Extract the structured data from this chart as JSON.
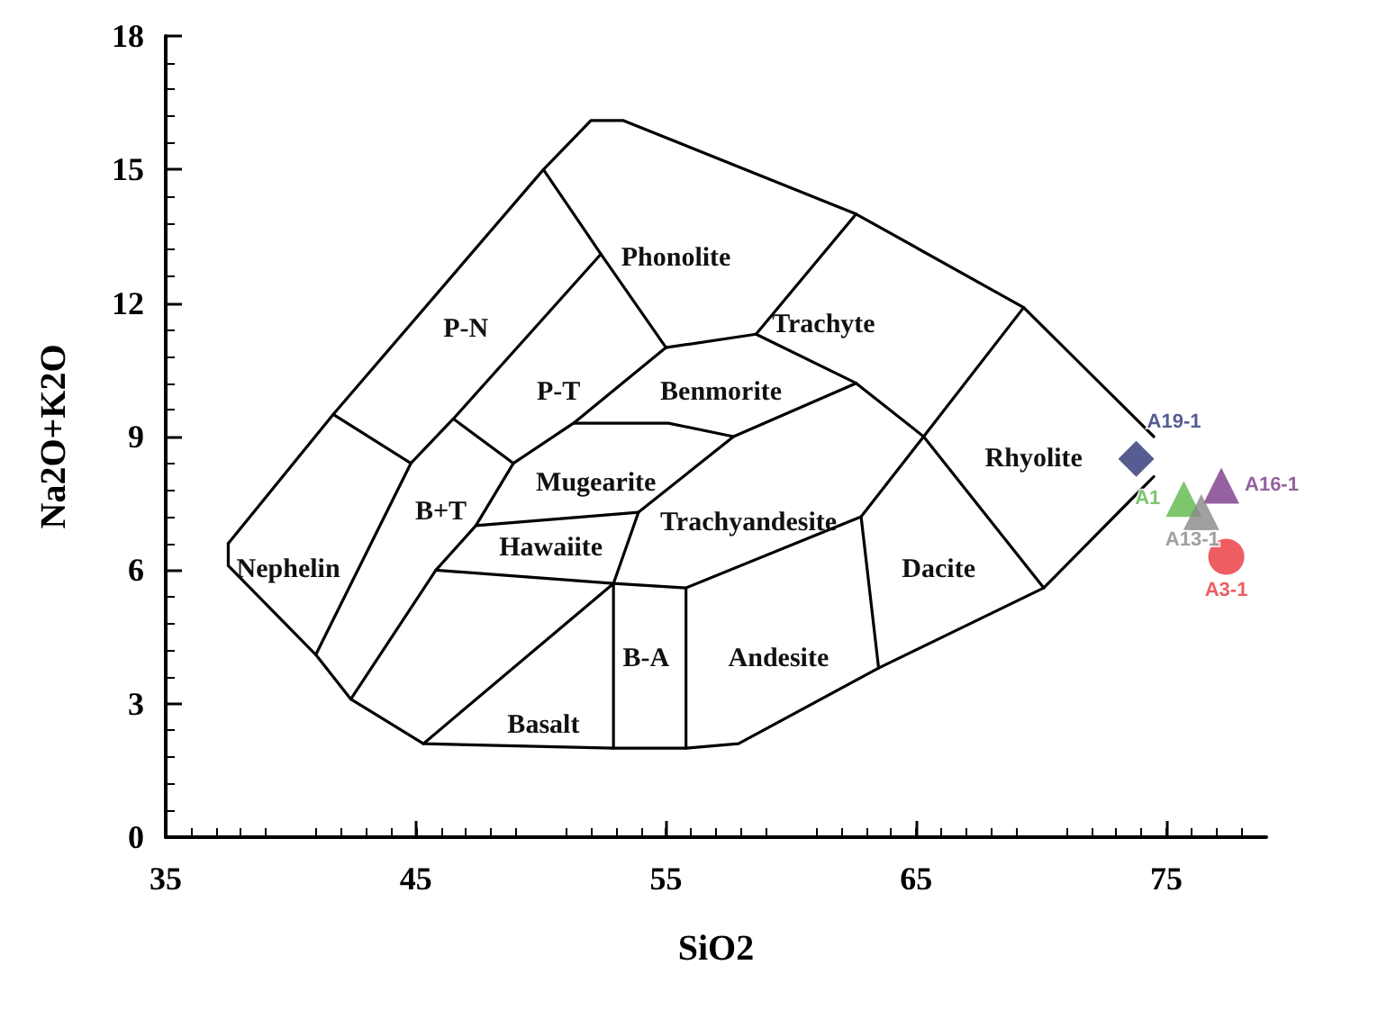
{
  "chart_data": {
    "type": "scatter",
    "xlabel": "SiO2",
    "ylabel": "Na2O+K2O",
    "xlim": [
      35,
      79
    ],
    "xticks": [
      35,
      45,
      55,
      65,
      75
    ],
    "ylim": [
      0,
      18
    ],
    "yticks": [
      0,
      3,
      6,
      9,
      12,
      15,
      18
    ],
    "grid": false,
    "legend": false,
    "line_style": "solid",
    "series": [
      {
        "type": "line",
        "color": "#000000",
        "marker": "none",
        "x": [
          37.5,
          41.7,
          50.1,
          52.0,
          53.3,
          62.6,
          69.3,
          74.5
        ],
        "values": [
          6.6,
          9.5,
          15.0,
          16.1,
          16.1,
          14.0,
          11.9,
          9.0
        ]
      },
      {
        "type": "line",
        "color": "#000000",
        "marker": "none",
        "x": [
          37.5,
          37.5,
          41.0,
          42.4,
          45.3,
          52.9,
          55.8,
          57.9,
          63.5,
          70.1,
          74.5
        ],
        "values": [
          6.6,
          6.1,
          4.1,
          3.1,
          2.1,
          2.0,
          2.0,
          2.1,
          3.8,
          5.6,
          8.1
        ]
      },
      {
        "type": "line",
        "color": "#000000",
        "marker": "none",
        "x": [
          41.0,
          44.8,
          46.5,
          52.4
        ],
        "values": [
          4.1,
          8.4,
          9.4,
          13.1
        ]
      },
      {
        "type": "line",
        "color": "#000000",
        "marker": "none",
        "x": [
          41.7,
          44.8
        ],
        "values": [
          9.5,
          8.4
        ]
      },
      {
        "type": "line",
        "color": "#000000",
        "marker": "none",
        "x": [
          50.1,
          52.4,
          55.0
        ],
        "values": [
          15.0,
          13.1,
          11.0
        ]
      },
      {
        "type": "line",
        "color": "#000000",
        "marker": "none",
        "x": [
          46.5,
          48.9
        ],
        "values": [
          9.4,
          8.4
        ]
      },
      {
        "type": "line",
        "color": "#000000",
        "marker": "none",
        "x": [
          42.4,
          45.8,
          47.4,
          48.9,
          51.3,
          55.0
        ],
        "values": [
          3.1,
          6.0,
          7.0,
          8.4,
          9.3,
          11.0
        ]
      },
      {
        "type": "line",
        "color": "#000000",
        "marker": "none",
        "x": [
          51.3,
          55.1,
          57.7
        ],
        "values": [
          9.3,
          9.3,
          9.0
        ]
      },
      {
        "type": "line",
        "color": "#000000",
        "marker": "none",
        "x": [
          55.0,
          58.6,
          62.6
        ],
        "values": [
          11.0,
          11.3,
          14.0
        ]
      },
      {
        "type": "line",
        "color": "#000000",
        "marker": "none",
        "x": [
          58.6,
          62.6,
          65.3,
          69.3
        ],
        "values": [
          11.3,
          10.2,
          9.0,
          11.9
        ]
      },
      {
        "type": "line",
        "color": "#000000",
        "marker": "none",
        "x": [
          65.3,
          70.1
        ],
        "values": [
          9.0,
          5.6
        ]
      },
      {
        "type": "line",
        "color": "#000000",
        "marker": "none",
        "x": [
          65.3,
          62.8,
          63.5
        ],
        "values": [
          9.0,
          7.2,
          3.8
        ]
      },
      {
        "type": "line",
        "color": "#000000",
        "marker": "none",
        "x": [
          62.8,
          55.8,
          52.9
        ],
        "values": [
          7.2,
          5.6,
          5.7
        ]
      },
      {
        "type": "line",
        "color": "#000000",
        "marker": "none",
        "x": [
          55.8,
          55.8
        ],
        "values": [
          5.6,
          2.0
        ]
      },
      {
        "type": "line",
        "color": "#000000",
        "marker": "none",
        "x": [
          52.9,
          52.9,
          53.9,
          57.7,
          62.6
        ],
        "values": [
          2.0,
          5.7,
          7.3,
          9.0,
          10.2
        ]
      },
      {
        "type": "line",
        "color": "#000000",
        "marker": "none",
        "x": [
          47.4,
          53.9
        ],
        "values": [
          7.0,
          7.3
        ]
      },
      {
        "type": "line",
        "color": "#000000",
        "marker": "none",
        "x": [
          45.8,
          52.9,
          45.3
        ],
        "values": [
          6.0,
          5.7,
          2.1
        ]
      },
      {
        "name": "A19-1",
        "color": "#2a3575",
        "marker": "diamond",
        "x": [
          73.8
        ],
        "values": [
          8.5
        ]
      },
      {
        "name": "A1",
        "color": "#5cb84a",
        "marker": "triangle",
        "x": [
          75.7
        ],
        "values": [
          7.6
        ]
      },
      {
        "name": "A16-1",
        "color": "#7b3a8a",
        "marker": "triangle",
        "x": [
          77.2
        ],
        "values": [
          7.9
        ]
      },
      {
        "name": "A13-1",
        "color": "#888888",
        "marker": "triangle",
        "x": [
          76.4
        ],
        "values": [
          7.3
        ]
      },
      {
        "name": "A3-1",
        "color": "#e8343a",
        "marker": "circle",
        "x": [
          77.4
        ],
        "values": [
          6.3
        ]
      }
    ],
    "annotations": [
      "Phonolite",
      "P-N",
      "Trachyte",
      "P-T",
      "Benmorite",
      "Rhyolite",
      "Mugearite",
      "B+T",
      "Trachyandesite",
      "Hawaiite",
      "Nephelin",
      "Dacite",
      "Andesite",
      "B-A",
      "Basalt"
    ]
  }
}
